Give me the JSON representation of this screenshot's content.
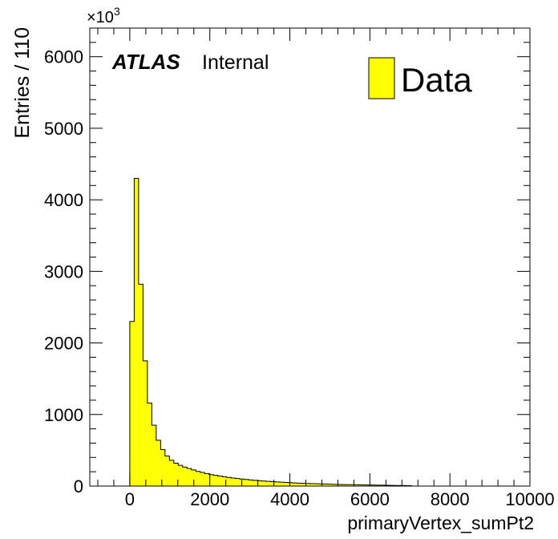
{
  "chart_data": {
    "type": "bar",
    "experiment_label": "ATLAS",
    "status_label": "Internal",
    "xlabel": "primaryVertex_sumPt2",
    "ylabel": "Entries / 110",
    "y_multiplier": "×10",
    "y_multiplier_exp": "3",
    "xlim": [
      -1000,
      10000
    ],
    "ylim": [
      0,
      6400
    ],
    "bin_width": 110,
    "x_ticks": [
      0,
      2000,
      4000,
      6000,
      8000,
      10000
    ],
    "x_tick_labels": [
      "0",
      "2000",
      "4000",
      "6000",
      "8000",
      "10000"
    ],
    "y_ticks": [
      0,
      1000,
      2000,
      3000,
      4000,
      5000,
      6000
    ],
    "y_tick_labels": [
      "0",
      "1000",
      "2000",
      "3000",
      "4000",
      "5000",
      "6000"
    ],
    "series": [
      {
        "name": "Data",
        "color": "#ffff00",
        "x_start": 0,
        "values": [
          2300,
          4300,
          2820,
          1750,
          1160,
          850,
          640,
          510,
          420,
          360,
          320,
          290,
          265,
          245,
          225,
          205,
          190,
          175,
          160,
          150,
          140,
          130,
          120,
          112,
          105,
          98,
          92,
          86,
          80,
          75,
          70,
          66,
          62,
          58,
          54,
          50,
          47,
          44,
          41,
          38,
          36,
          34,
          32,
          30,
          28,
          26,
          24,
          22,
          21,
          20,
          19,
          18,
          17,
          16,
          15,
          14,
          13,
          12,
          11,
          10,
          9,
          8,
          7,
          6
        ]
      }
    ],
    "legend_position": "top-right"
  }
}
